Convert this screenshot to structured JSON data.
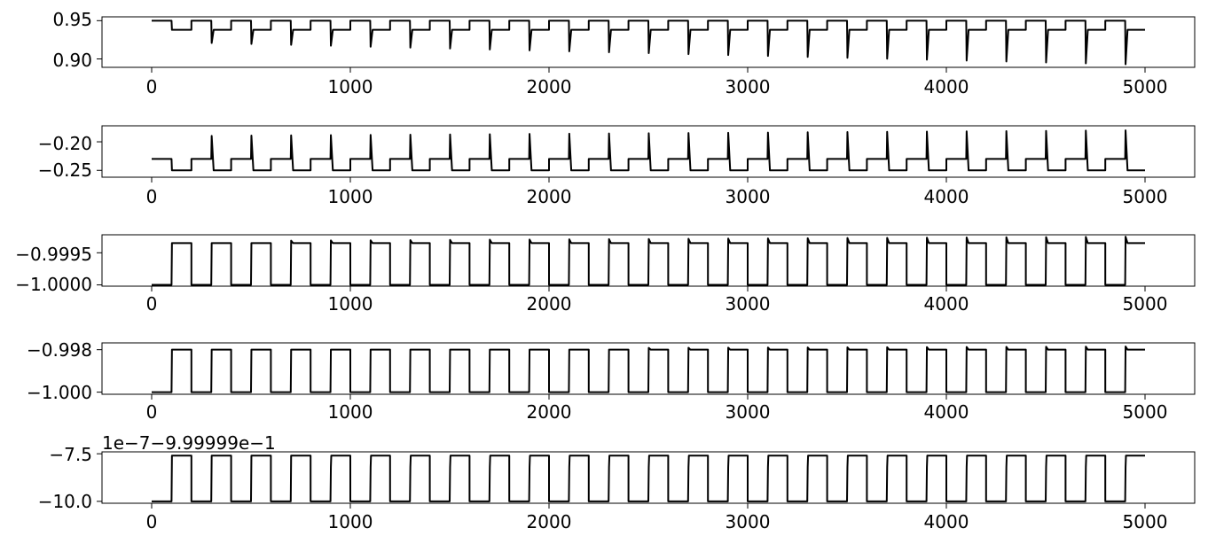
{
  "chart_data": [
    {
      "type": "line",
      "xlim": [
        -250,
        5250
      ],
      "ylim": [
        0.889,
        0.955
      ],
      "x_ticks": [
        "0",
        "1000",
        "2000",
        "3000",
        "4000",
        "5000"
      ],
      "y_ticks": [
        {
          "label": "0.95",
          "value": 0.95
        },
        {
          "label": "0.90",
          "value": 0.9
        }
      ],
      "offset_text": "",
      "signal": {
        "period": 200,
        "low_duration": 100,
        "start_phase": "high",
        "base_high": 0.95,
        "base_low": 0.938,
        "spike_direction": "down",
        "spike_start": 0.922,
        "spike_end": 0.893,
        "spike_start_period": 1,
        "rise_steps": 1,
        "shape_growth": 1.0
      }
    },
    {
      "type": "line",
      "xlim": [
        -250,
        5250
      ],
      "ylim": [
        -0.262,
        -0.172
      ],
      "x_ticks": [
        "0",
        "1000",
        "2000",
        "3000",
        "4000",
        "5000"
      ],
      "y_ticks": [
        {
          "label": "−0.20",
          "value": -0.2
        },
        {
          "label": "−0.25",
          "value": -0.25
        }
      ],
      "offset_text": "",
      "signal": {
        "period": 200,
        "low_duration": 100,
        "start_phase": "high",
        "base_high": -0.23,
        "base_low": -0.25,
        "spike_direction": "up",
        "spike_start": -0.19,
        "spike_end": -0.18,
        "spike_start_period": 1,
        "rise_steps": 1,
        "shape_growth": 1.0
      }
    },
    {
      "type": "line",
      "xlim": [
        -250,
        5250
      ],
      "ylim": [
        -1.00002,
        -0.99922
      ],
      "x_ticks": [
        "0",
        "1000",
        "2000",
        "3000",
        "4000",
        "5000"
      ],
      "y_ticks": [
        {
          "label": "−0.9995",
          "value": -0.9995
        },
        {
          "label": "−1.0000",
          "value": -1.0
        }
      ],
      "offset_text": "",
      "signal": {
        "period": 200,
        "low_duration": 100,
        "start_phase": "low",
        "base_high": -0.99935,
        "base_low": -1.0,
        "spike_direction": "up",
        "spike_start": -0.99932,
        "spike_end": -0.99925,
        "spike_start_period": 3,
        "rise_steps": 1,
        "shape_growth": 1.0
      }
    },
    {
      "type": "line",
      "xlim": [
        -250,
        5250
      ],
      "ylim": [
        -1.0001,
        -0.99768
      ],
      "x_ticks": [
        "0",
        "1000",
        "2000",
        "3000",
        "4000",
        "5000"
      ],
      "y_ticks": [
        {
          "label": "−0.998",
          "value": -0.998
        },
        {
          "label": "−1.000",
          "value": -1.0
        }
      ],
      "offset_text": "",
      "signal": {
        "period": 200,
        "low_duration": 100,
        "start_phase": "low",
        "base_high": -0.998,
        "base_low": -1.0,
        "spike_direction": "up",
        "spike_start": -0.99798,
        "spike_end": -0.99785,
        "spike_start_period": 12,
        "rise_steps": 1,
        "shape_growth": 1.0
      }
    },
    {
      "type": "line",
      "xlim": [
        -250,
        5250
      ],
      "ylim": [
        -10.1,
        -7.4
      ],
      "x_ticks": [
        "0",
        "1000",
        "2000",
        "3000",
        "4000",
        "5000"
      ],
      "y_ticks": [
        {
          "label": "−7.5",
          "value": -7.5
        },
        {
          "label": "−10.0",
          "value": -10.0
        }
      ],
      "offset_text": "1e−7−9.99999e−1",
      "signal": {
        "period": 200,
        "low_duration": 100,
        "start_phase": "low",
        "base_high": -7.6,
        "base_low": -10.0,
        "spike_direction": "down",
        "spike_start": -8.2,
        "spike_end": -8.2,
        "spike_start_period": 4,
        "rise_steps": 5,
        "shape_growth": 1.0
      }
    }
  ]
}
